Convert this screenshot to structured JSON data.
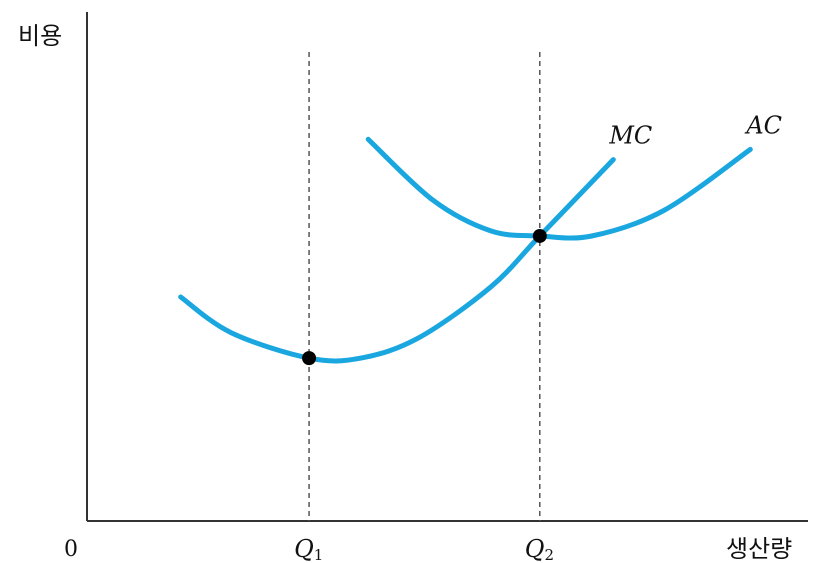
{
  "chart_data": {
    "type": "line",
    "title": "",
    "ylabel": "비용",
    "xlabel": "생산량",
    "origin_label": "0",
    "xlim": [
      0,
      10
    ],
    "ylim": [
      0,
      10
    ],
    "grid": false,
    "legend": "none",
    "ticks": [
      {
        "base": "Q",
        "sub": "1",
        "x": 3.08
      },
      {
        "base": "Q",
        "sub": "2",
        "x": 6.28
      }
    ],
    "series": [
      {
        "name": "MC",
        "color": "#1aa7e0",
        "points": [
          [
            1.3,
            4.4
          ],
          [
            2.0,
            3.7
          ],
          [
            3.08,
            3.2
          ],
          [
            3.8,
            3.2
          ],
          [
            4.6,
            3.6
          ],
          [
            5.6,
            4.6
          ],
          [
            6.28,
            5.6
          ],
          [
            7.3,
            7.1
          ]
        ]
      },
      {
        "name": "AC",
        "color": "#1aa7e0",
        "points": [
          [
            3.9,
            7.5
          ],
          [
            4.8,
            6.3
          ],
          [
            5.6,
            5.7
          ],
          [
            6.28,
            5.6
          ],
          [
            7.0,
            5.6
          ],
          [
            8.0,
            6.1
          ],
          [
            9.2,
            7.3
          ]
        ]
      }
    ],
    "markers": [
      {
        "x": 3.08,
        "y": 3.2
      },
      {
        "x": 6.28,
        "y": 5.6
      }
    ]
  }
}
